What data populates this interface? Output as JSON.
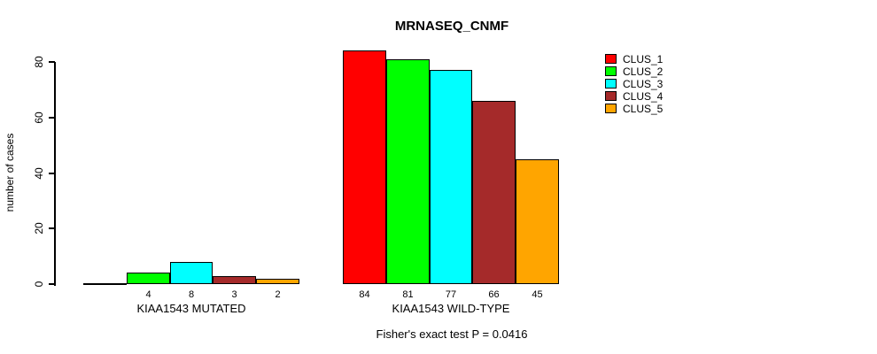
{
  "chart_data": {
    "type": "bar",
    "title": "MRNASEQ_CNMF",
    "ylabel": "number of cases",
    "xlabel": "",
    "ylim": [
      0,
      84
    ],
    "yticks": [
      0,
      20,
      40,
      60,
      80
    ],
    "grid": false,
    "legend_position": "right",
    "categories": [
      "KIAA1543 MUTATED",
      "KIAA1543 WILD-TYPE"
    ],
    "series": [
      {
        "name": "CLUS_1",
        "color": "#FF0000",
        "values": [
          0,
          84
        ]
      },
      {
        "name": "CLUS_2",
        "color": "#00FF00",
        "values": [
          4,
          81
        ]
      },
      {
        "name": "CLUS_3",
        "color": "#00FFFF",
        "values": [
          8,
          77
        ]
      },
      {
        "name": "CLUS_4",
        "color": "#A52A2A",
        "values": [
          3,
          66
        ]
      },
      {
        "name": "CLUS_5",
        "color": "#FFA500",
        "values": [
          2,
          45
        ]
      }
    ],
    "groups": [
      {
        "label": "KIAA1543 MUTATED",
        "values": [
          0,
          4,
          8,
          3,
          2
        ],
        "bar_labels": [
          "",
          "4",
          "8",
          "3",
          "2"
        ]
      },
      {
        "label": "KIAA1543 WILD-TYPE",
        "values": [
          84,
          81,
          77,
          66,
          45
        ],
        "bar_labels": [
          "84",
          "81",
          "77",
          "66",
          "45"
        ]
      }
    ],
    "annotation": "Fisher's exact test P = 0.0416"
  },
  "legend": {
    "items": [
      {
        "label": "CLUS_1",
        "color": "#FF0000"
      },
      {
        "label": "CLUS_2",
        "color": "#00FF00"
      },
      {
        "label": "CLUS_3",
        "color": "#00FFFF"
      },
      {
        "label": "CLUS_4",
        "color": "#A52A2A"
      },
      {
        "label": "CLUS_5",
        "color": "#FFA500"
      }
    ]
  },
  "colors": {
    "background": "#FFFFFF",
    "axis": "#000000",
    "text": "#000000"
  }
}
